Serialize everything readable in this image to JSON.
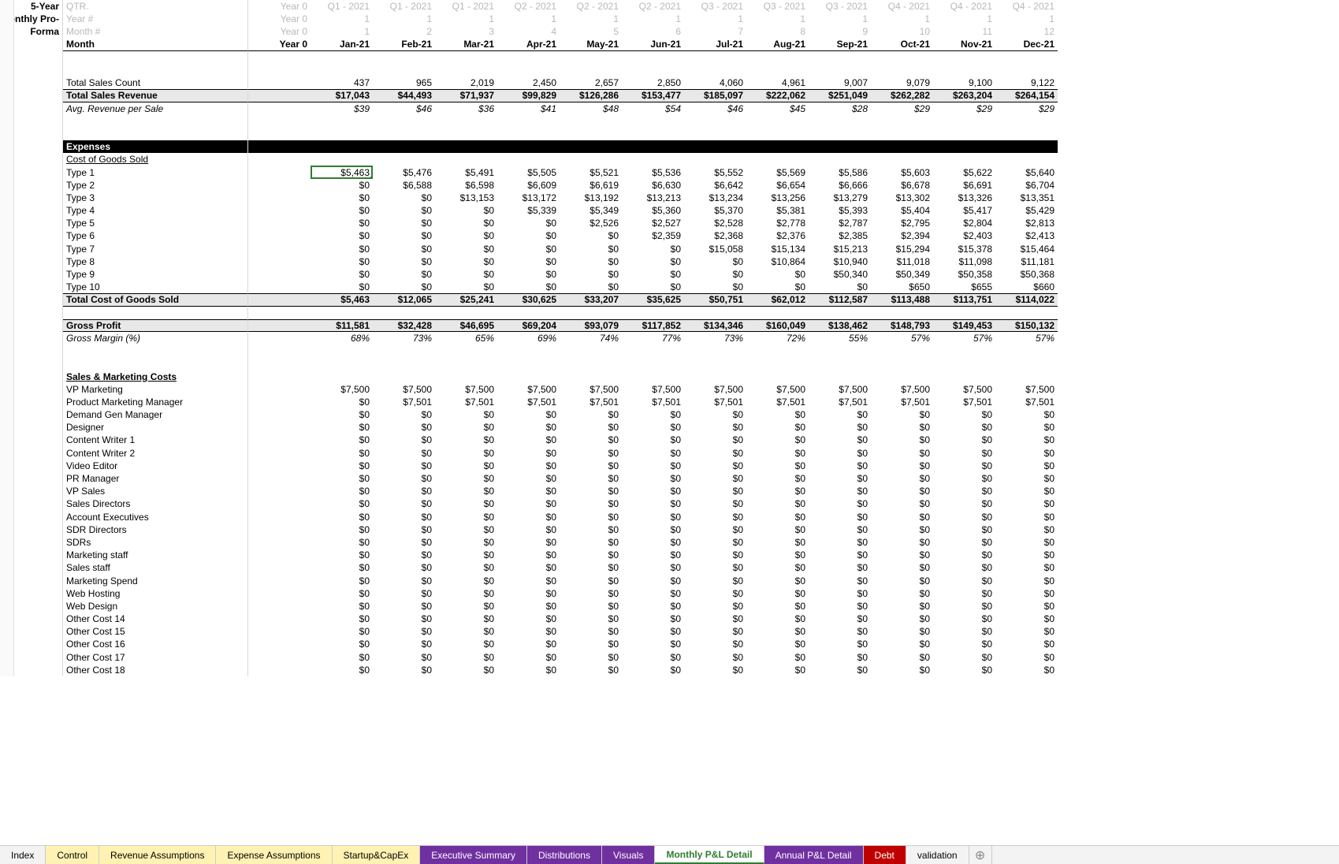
{
  "sideLabels": [
    "5-Year",
    "Monthly Pro-",
    "Forma"
  ],
  "headerRows": [
    {
      "label": "QTR.",
      "y0": "Year 0",
      "vals": [
        "Q1 - 2021",
        "Q1 - 2021",
        "Q1 - 2021",
        "Q2 - 2021",
        "Q2 - 2021",
        "Q2 - 2021",
        "Q3 - 2021",
        "Q3 - 2021",
        "Q3 - 2021",
        "Q4 - 2021",
        "Q4 - 2021",
        "Q4 - 2021"
      ]
    },
    {
      "label": "Year #",
      "y0": "Year 0",
      "vals": [
        "1",
        "1",
        "1",
        "1",
        "1",
        "1",
        "1",
        "1",
        "1",
        "1",
        "1",
        "1"
      ]
    },
    {
      "label": "Month #",
      "y0": "Year 0",
      "vals": [
        "1",
        "2",
        "3",
        "4",
        "5",
        "6",
        "7",
        "8",
        "9",
        "10",
        "11",
        "12"
      ]
    }
  ],
  "monthRow": {
    "label": "Month",
    "y0": "Year 0",
    "vals": [
      "Jan-21",
      "Feb-21",
      "Mar-21",
      "Apr-21",
      "May-21",
      "Jun-21",
      "Jul-21",
      "Aug-21",
      "Sep-21",
      "Oct-21",
      "Nov-21",
      "Dec-21"
    ]
  },
  "sections": [
    {
      "t": "blank"
    },
    {
      "t": "blank"
    },
    {
      "t": "data",
      "label": "Total Sales Count",
      "vals": [
        "437",
        "965",
        "2,019",
        "2,450",
        "2,657",
        "2,850",
        "4,060",
        "4,961",
        "9,007",
        "9,079",
        "9,100",
        "9,122"
      ],
      "fmt": ""
    },
    {
      "t": "totalgray",
      "label": "Total Sales Revenue",
      "vals": [
        "$17,043",
        "$44,493",
        "$71,937",
        "$99,829",
        "$126,286",
        "$153,477",
        "$185,097",
        "$222,062",
        "$251,049",
        "$262,282",
        "$263,204",
        "$264,154"
      ]
    },
    {
      "t": "italic",
      "label": "Avg. Revenue per Sale",
      "vals": [
        "$39",
        "$46",
        "$36",
        "$41",
        "$48",
        "$54",
        "$46",
        "$45",
        "$28",
        "$29",
        "$29",
        "$29"
      ]
    },
    {
      "t": "blank"
    },
    {
      "t": "blank"
    },
    {
      "t": "blackbar",
      "label": "Expenses"
    },
    {
      "t": "sub",
      "label": "Cost of Goods Sold"
    },
    {
      "t": "data",
      "label": "Type 1",
      "vals": [
        "$5,463",
        "$5,476",
        "$5,491",
        "$5,505",
        "$5,521",
        "$5,536",
        "$5,552",
        "$5,569",
        "$5,586",
        "$5,603",
        "$5,622",
        "$5,640"
      ],
      "active": true
    },
    {
      "t": "data",
      "label": "Type 2",
      "vals": [
        "$0",
        "$6,588",
        "$6,598",
        "$6,609",
        "$6,619",
        "$6,630",
        "$6,642",
        "$6,654",
        "$6,666",
        "$6,678",
        "$6,691",
        "$6,704"
      ]
    },
    {
      "t": "data",
      "label": "Type 3",
      "vals": [
        "$0",
        "$0",
        "$13,153",
        "$13,172",
        "$13,192",
        "$13,213",
        "$13,234",
        "$13,256",
        "$13,279",
        "$13,302",
        "$13,326",
        "$13,351"
      ]
    },
    {
      "t": "data",
      "label": "Type 4",
      "vals": [
        "$0",
        "$0",
        "$0",
        "$5,339",
        "$5,349",
        "$5,360",
        "$5,370",
        "$5,381",
        "$5,393",
        "$5,404",
        "$5,417",
        "$5,429"
      ]
    },
    {
      "t": "data",
      "label": "Type 5",
      "vals": [
        "$0",
        "$0",
        "$0",
        "$0",
        "$2,526",
        "$2,527",
        "$2,528",
        "$2,778",
        "$2,787",
        "$2,795",
        "$2,804",
        "$2,813"
      ]
    },
    {
      "t": "data",
      "label": "Type 6",
      "vals": [
        "$0",
        "$0",
        "$0",
        "$0",
        "$0",
        "$2,359",
        "$2,368",
        "$2,376",
        "$2,385",
        "$2,394",
        "$2,403",
        "$2,413"
      ]
    },
    {
      "t": "data",
      "label": "Type 7",
      "vals": [
        "$0",
        "$0",
        "$0",
        "$0",
        "$0",
        "$0",
        "$15,058",
        "$15,134",
        "$15,213",
        "$15,294",
        "$15,378",
        "$15,464"
      ]
    },
    {
      "t": "data",
      "label": "Type 8",
      "vals": [
        "$0",
        "$0",
        "$0",
        "$0",
        "$0",
        "$0",
        "$0",
        "$10,864",
        "$10,940",
        "$11,018",
        "$11,098",
        "$11,181"
      ]
    },
    {
      "t": "data",
      "label": "Type 9",
      "vals": [
        "$0",
        "$0",
        "$0",
        "$0",
        "$0",
        "$0",
        "$0",
        "$0",
        "$50,340",
        "$50,349",
        "$50,358",
        "$50,368"
      ]
    },
    {
      "t": "data",
      "label": "Type 10",
      "vals": [
        "$0",
        "$0",
        "$0",
        "$0",
        "$0",
        "$0",
        "$0",
        "$0",
        "$0",
        "$650",
        "$655",
        "$660"
      ]
    },
    {
      "t": "totalgray",
      "label": "Total Cost of Goods Sold",
      "vals": [
        "$5,463",
        "$12,065",
        "$25,241",
        "$30,625",
        "$33,207",
        "$35,625",
        "$50,751",
        "$62,012",
        "$112,587",
        "$113,488",
        "$113,751",
        "$114,022"
      ]
    },
    {
      "t": "blank"
    },
    {
      "t": "totalgray",
      "label": "Gross Profit",
      "vals": [
        "$11,581",
        "$32,428",
        "$46,695",
        "$69,204",
        "$93,079",
        "$117,852",
        "$134,346",
        "$160,049",
        "$138,462",
        "$148,793",
        "$149,453",
        "$150,132"
      ]
    },
    {
      "t": "italic",
      "label": "Gross Margin (%)",
      "vals": [
        "68%",
        "73%",
        "65%",
        "69%",
        "74%",
        "77%",
        "73%",
        "72%",
        "55%",
        "57%",
        "57%",
        "57%"
      ]
    },
    {
      "t": "blank"
    },
    {
      "t": "blank"
    },
    {
      "t": "subub",
      "label": "Sales & Marketing Costs"
    },
    {
      "t": "data",
      "label": "VP Marketing",
      "vals": [
        "$7,500",
        "$7,500",
        "$7,500",
        "$7,500",
        "$7,500",
        "$7,500",
        "$7,500",
        "$7,500",
        "$7,500",
        "$7,500",
        "$7,500",
        "$7,500"
      ]
    },
    {
      "t": "data",
      "label": "Product Marketing Manager",
      "vals": [
        "$0",
        "$7,501",
        "$7,501",
        "$7,501",
        "$7,501",
        "$7,501",
        "$7,501",
        "$7,501",
        "$7,501",
        "$7,501",
        "$7,501",
        "$7,501"
      ]
    },
    {
      "t": "data",
      "label": "Demand Gen Manager",
      "vals": [
        "$0",
        "$0",
        "$0",
        "$0",
        "$0",
        "$0",
        "$0",
        "$0",
        "$0",
        "$0",
        "$0",
        "$0"
      ]
    },
    {
      "t": "data",
      "label": "Designer",
      "vals": [
        "$0",
        "$0",
        "$0",
        "$0",
        "$0",
        "$0",
        "$0",
        "$0",
        "$0",
        "$0",
        "$0",
        "$0"
      ]
    },
    {
      "t": "data",
      "label": "Content Writer 1",
      "vals": [
        "$0",
        "$0",
        "$0",
        "$0",
        "$0",
        "$0",
        "$0",
        "$0",
        "$0",
        "$0",
        "$0",
        "$0"
      ]
    },
    {
      "t": "data",
      "label": "Content Writer 2",
      "vals": [
        "$0",
        "$0",
        "$0",
        "$0",
        "$0",
        "$0",
        "$0",
        "$0",
        "$0",
        "$0",
        "$0",
        "$0"
      ]
    },
    {
      "t": "data",
      "label": "Video Editor",
      "vals": [
        "$0",
        "$0",
        "$0",
        "$0",
        "$0",
        "$0",
        "$0",
        "$0",
        "$0",
        "$0",
        "$0",
        "$0"
      ]
    },
    {
      "t": "data",
      "label": "PR Manager",
      "vals": [
        "$0",
        "$0",
        "$0",
        "$0",
        "$0",
        "$0",
        "$0",
        "$0",
        "$0",
        "$0",
        "$0",
        "$0"
      ]
    },
    {
      "t": "data",
      "label": "VP Sales",
      "vals": [
        "$0",
        "$0",
        "$0",
        "$0",
        "$0",
        "$0",
        "$0",
        "$0",
        "$0",
        "$0",
        "$0",
        "$0"
      ]
    },
    {
      "t": "data",
      "label": "Sales Directors",
      "vals": [
        "$0",
        "$0",
        "$0",
        "$0",
        "$0",
        "$0",
        "$0",
        "$0",
        "$0",
        "$0",
        "$0",
        "$0"
      ]
    },
    {
      "t": "data",
      "label": "Account Executives",
      "vals": [
        "$0",
        "$0",
        "$0",
        "$0",
        "$0",
        "$0",
        "$0",
        "$0",
        "$0",
        "$0",
        "$0",
        "$0"
      ]
    },
    {
      "t": "data",
      "label": "SDR Directors",
      "vals": [
        "$0",
        "$0",
        "$0",
        "$0",
        "$0",
        "$0",
        "$0",
        "$0",
        "$0",
        "$0",
        "$0",
        "$0"
      ]
    },
    {
      "t": "data",
      "label": "SDRs",
      "vals": [
        "$0",
        "$0",
        "$0",
        "$0",
        "$0",
        "$0",
        "$0",
        "$0",
        "$0",
        "$0",
        "$0",
        "$0"
      ]
    },
    {
      "t": "data",
      "label": "Marketing staff",
      "vals": [
        "$0",
        "$0",
        "$0",
        "$0",
        "$0",
        "$0",
        "$0",
        "$0",
        "$0",
        "$0",
        "$0",
        "$0"
      ]
    },
    {
      "t": "data",
      "label": "Sales staff",
      "vals": [
        "$0",
        "$0",
        "$0",
        "$0",
        "$0",
        "$0",
        "$0",
        "$0",
        "$0",
        "$0",
        "$0",
        "$0"
      ]
    },
    {
      "t": "data",
      "label": "Marketing Spend",
      "vals": [
        "$0",
        "$0",
        "$0",
        "$0",
        "$0",
        "$0",
        "$0",
        "$0",
        "$0",
        "$0",
        "$0",
        "$0"
      ]
    },
    {
      "t": "data",
      "label": "Web Hosting",
      "vals": [
        "$0",
        "$0",
        "$0",
        "$0",
        "$0",
        "$0",
        "$0",
        "$0",
        "$0",
        "$0",
        "$0",
        "$0"
      ]
    },
    {
      "t": "data",
      "label": "Web Design",
      "vals": [
        "$0",
        "$0",
        "$0",
        "$0",
        "$0",
        "$0",
        "$0",
        "$0",
        "$0",
        "$0",
        "$0",
        "$0"
      ]
    },
    {
      "t": "data",
      "label": "Other Cost 14",
      "vals": [
        "$0",
        "$0",
        "$0",
        "$0",
        "$0",
        "$0",
        "$0",
        "$0",
        "$0",
        "$0",
        "$0",
        "$0"
      ]
    },
    {
      "t": "data",
      "label": "Other Cost 15",
      "vals": [
        "$0",
        "$0",
        "$0",
        "$0",
        "$0",
        "$0",
        "$0",
        "$0",
        "$0",
        "$0",
        "$0",
        "$0"
      ]
    },
    {
      "t": "data",
      "label": "Other Cost 16",
      "vals": [
        "$0",
        "$0",
        "$0",
        "$0",
        "$0",
        "$0",
        "$0",
        "$0",
        "$0",
        "$0",
        "$0",
        "$0"
      ]
    },
    {
      "t": "data",
      "label": "Other Cost 17",
      "vals": [
        "$0",
        "$0",
        "$0",
        "$0",
        "$0",
        "$0",
        "$0",
        "$0",
        "$0",
        "$0",
        "$0",
        "$0"
      ]
    },
    {
      "t": "data",
      "label": "Other Cost 18",
      "vals": [
        "$0",
        "$0",
        "$0",
        "$0",
        "$0",
        "$0",
        "$0",
        "$0",
        "$0",
        "$0",
        "$0",
        "$0"
      ]
    }
  ],
  "tabs": [
    {
      "label": "Index",
      "cls": ""
    },
    {
      "label": "Control",
      "cls": "yellow"
    },
    {
      "label": "Revenue Assumptions",
      "cls": "yellow"
    },
    {
      "label": "Expense Assumptions",
      "cls": "yellow"
    },
    {
      "label": "Startup&CapEx",
      "cls": "yellow"
    },
    {
      "label": "Executive Summary",
      "cls": "purple"
    },
    {
      "label": "Distributions",
      "cls": "purple"
    },
    {
      "label": "Visuals",
      "cls": "purple"
    },
    {
      "label": "Monthly P&L Detail",
      "cls": "green-t"
    },
    {
      "label": "Annual P&L Detail",
      "cls": "purple"
    },
    {
      "label": "Debt",
      "cls": "red"
    },
    {
      "label": "validation",
      "cls": ""
    }
  ],
  "colors": {
    "accent": "#2e7d32",
    "grayrow": "#e8e8e8",
    "black": "#000000"
  }
}
